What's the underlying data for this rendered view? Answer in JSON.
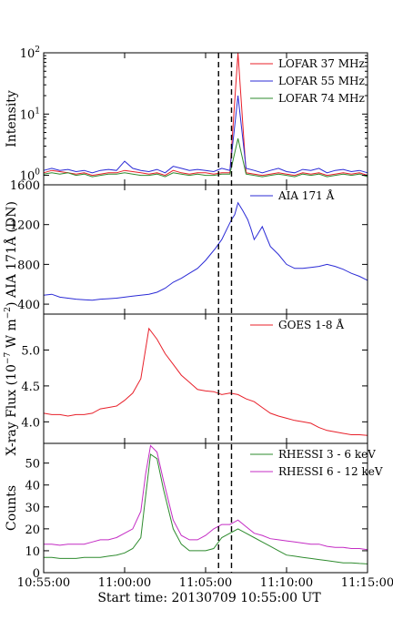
{
  "xaxis": {
    "ticks": [
      "10:55:00",
      "11:00:00",
      "11:05:00",
      "11:10:00",
      "11:15:00"
    ],
    "label": "Start time: 20130709 10:55:00 UT"
  },
  "markers": {
    "times_min": [
      10.8,
      11.6
    ],
    "style": "dashed",
    "color": "#000000"
  },
  "chart_data": [
    {
      "type": "line",
      "id": "lofar",
      "ylabel": "Intensity",
      "yscale": "log",
      "ylim": [
        0.7,
        100
      ],
      "ytick_base": "10",
      "ytick_exps": [
        "0",
        "1",
        "2"
      ],
      "legend_position": "top-right",
      "series": [
        {
          "name": "LOFAR 37 MHz",
          "color": "#e8202a",
          "x": [
            0,
            0.5,
            1,
            1.5,
            2,
            2.5,
            3,
            3.5,
            4,
            4.5,
            5,
            5.5,
            6,
            6.5,
            7,
            7.5,
            8,
            8.5,
            9,
            9.5,
            10,
            10.5,
            11,
            11.5,
            12,
            12.5,
            13,
            13.5,
            14,
            14.5,
            15,
            15.5,
            16,
            16.5,
            17,
            17.5,
            18,
            18.5,
            19,
            19.5,
            20
          ],
          "y": [
            1.1,
            1.2,
            1.15,
            1.1,
            1.05,
            1.1,
            1.0,
            1.05,
            1.1,
            1.1,
            1.2,
            1.15,
            1.1,
            1.05,
            1.1,
            1.0,
            1.2,
            1.1,
            1.05,
            1.1,
            1.1,
            1.05,
            1.1,
            1.1,
            100,
            1.1,
            1.05,
            1.0,
            1.05,
            1.1,
            1.05,
            1.0,
            1.1,
            1.05,
            1.1,
            1.0,
            1.05,
            1.1,
            1.05,
            1.1,
            1.0
          ]
        },
        {
          "name": "LOFAR 55 MHz",
          "color": "#2b2bd6",
          "x": [
            0,
            0.5,
            1,
            1.5,
            2,
            2.5,
            3,
            3.5,
            4,
            4.5,
            5,
            5.5,
            6,
            6.5,
            7,
            7.5,
            8,
            8.5,
            9,
            9.5,
            10,
            10.5,
            11,
            11.5,
            12,
            12.5,
            13,
            13.5,
            14,
            14.5,
            15,
            15.5,
            16,
            16.5,
            17,
            17.5,
            18,
            18.5,
            19,
            19.5,
            20
          ],
          "y": [
            1.2,
            1.3,
            1.2,
            1.25,
            1.15,
            1.2,
            1.1,
            1.2,
            1.25,
            1.2,
            1.7,
            1.3,
            1.2,
            1.15,
            1.25,
            1.1,
            1.4,
            1.3,
            1.2,
            1.25,
            1.2,
            1.15,
            1.3,
            1.2,
            20,
            1.3,
            1.2,
            1.1,
            1.2,
            1.3,
            1.15,
            1.1,
            1.25,
            1.2,
            1.3,
            1.1,
            1.2,
            1.25,
            1.15,
            1.2,
            1.1
          ]
        },
        {
          "name": "LOFAR 74 MHz",
          "color": "#2e8b2e",
          "x": [
            0,
            0.5,
            1,
            1.5,
            2,
            2.5,
            3,
            3.5,
            4,
            4.5,
            5,
            5.5,
            6,
            6.5,
            7,
            7.5,
            8,
            8.5,
            9,
            9.5,
            10,
            10.5,
            11,
            11.5,
            12,
            12.5,
            13,
            13.5,
            14,
            14.5,
            15,
            15.5,
            16,
            16.5,
            17,
            17.5,
            18,
            18.5,
            19,
            19.5,
            20
          ],
          "y": [
            1.05,
            1.1,
            1.05,
            1.1,
            1.0,
            1.05,
            0.95,
            1.0,
            1.05,
            1.05,
            1.1,
            1.05,
            1.0,
            1.0,
            1.05,
            0.95,
            1.1,
            1.05,
            1.0,
            1.05,
            1.0,
            1.0,
            1.05,
            1.05,
            4.0,
            1.05,
            1.0,
            0.95,
            1.0,
            1.05,
            1.0,
            0.95,
            1.05,
            1.0,
            1.05,
            0.95,
            1.0,
            1.05,
            1.0,
            1.05,
            0.95
          ]
        }
      ]
    },
    {
      "type": "line",
      "id": "aia",
      "ylabel": "AIA 171Å (DN)",
      "ylim": [
        300,
        1600
      ],
      "yticks": [
        400,
        800,
        1200,
        1600
      ],
      "legend_position": "top-right",
      "series": [
        {
          "name": "AIA 171 Å",
          "color": "#2b2bd6",
          "x": [
            0,
            0.5,
            1,
            1.5,
            2,
            2.5,
            3,
            3.5,
            4,
            4.5,
            5,
            5.5,
            6,
            6.5,
            7,
            7.5,
            8,
            8.5,
            9,
            9.5,
            10,
            10.3,
            10.6,
            11,
            11.3,
            11.6,
            11.8,
            12,
            12.3,
            12.6,
            12.8,
            13,
            13.2,
            13.5,
            13.8,
            14,
            14.5,
            15,
            15.5,
            16,
            16.5,
            17,
            17.5,
            18,
            18.5,
            19,
            19.5,
            20
          ],
          "y": [
            490,
            500,
            470,
            460,
            450,
            445,
            440,
            450,
            455,
            460,
            470,
            480,
            490,
            500,
            520,
            560,
            620,
            660,
            710,
            760,
            840,
            900,
            960,
            1050,
            1150,
            1250,
            1300,
            1420,
            1340,
            1250,
            1160,
            1050,
            1100,
            1180,
            1060,
            980,
            900,
            800,
            760,
            760,
            770,
            780,
            800,
            780,
            750,
            710,
            680,
            640
          ]
        }
      ]
    },
    {
      "type": "line",
      "id": "goes",
      "ylabel": "X-ray Flux (10",
      "ylabel_exp": "−7",
      "ylabel_unit": " W m",
      "ylabel_unit_exp": "−2",
      "ylabel_close": ")",
      "ylim": [
        3.7,
        5.5
      ],
      "yticks": [
        "4.0",
        "4.5",
        "5.0"
      ],
      "legend_position": "top-right",
      "series": [
        {
          "name": "GOES 1-8 Å",
          "color": "#e8202a",
          "x": [
            0,
            0.5,
            1,
            1.5,
            2,
            2.5,
            3,
            3.5,
            4,
            4.5,
            5,
            5.5,
            6,
            6.5,
            7,
            7.5,
            8,
            8.5,
            9,
            9.5,
            10,
            10.5,
            11,
            11.5,
            12,
            12.5,
            13,
            13.5,
            14,
            14.5,
            15,
            15.5,
            16,
            16.5,
            17,
            17.5,
            18,
            18.5,
            19,
            19.5,
            20
          ],
          "y": [
            4.12,
            4.1,
            4.1,
            4.08,
            4.1,
            4.1,
            4.12,
            4.18,
            4.2,
            4.22,
            4.3,
            4.4,
            4.6,
            5.3,
            5.15,
            4.95,
            4.8,
            4.65,
            4.55,
            4.45,
            4.43,
            4.42,
            4.38,
            4.4,
            4.38,
            4.32,
            4.28,
            4.2,
            4.12,
            4.08,
            4.05,
            4.02,
            4.0,
            3.98,
            3.92,
            3.88,
            3.86,
            3.84,
            3.82,
            3.82,
            3.81
          ]
        }
      ]
    },
    {
      "type": "line",
      "id": "rhessi",
      "ylabel": "Counts",
      "ylim": [
        0,
        59
      ],
      "yticks": [
        "0",
        "10",
        "20",
        "30",
        "40",
        "50"
      ],
      "legend_position": "top-right",
      "series": [
        {
          "name": "RHESSI 3 - 6 keV",
          "color": "#2e8b2e",
          "x": [
            0,
            0.5,
            1,
            1.5,
            2,
            2.5,
            3,
            3.5,
            4,
            4.5,
            5,
            5.5,
            6,
            6.3,
            6.6,
            7,
            7.4,
            8,
            8.5,
            9,
            9.5,
            10,
            10.5,
            11,
            11.5,
            12,
            12.5,
            13,
            13.5,
            14,
            14.5,
            15,
            15.5,
            16,
            16.5,
            17,
            17.5,
            18,
            18.5,
            19,
            19.5,
            20
          ],
          "y": [
            7,
            7,
            6.5,
            6.5,
            6.5,
            7,
            7,
            7,
            7.5,
            8,
            9,
            11,
            16,
            35,
            54,
            52,
            38,
            20,
            13,
            10,
            10,
            10,
            11,
            16,
            18,
            20,
            18,
            16,
            14,
            12,
            10,
            8,
            7.5,
            7,
            6.5,
            6,
            5.5,
            5,
            4.5,
            4.5,
            4.2,
            4
          ]
        },
        {
          "name": "RHESSI 6 - 12 keV",
          "color": "#c42cc4",
          "x": [
            0,
            0.5,
            1,
            1.5,
            2,
            2.5,
            3,
            3.5,
            4,
            4.5,
            5,
            5.5,
            6,
            6.3,
            6.6,
            7,
            7.4,
            8,
            8.5,
            9,
            9.5,
            10,
            10.5,
            11,
            11.5,
            12,
            12.5,
            13,
            13.5,
            14,
            14.5,
            15,
            15.5,
            16,
            16.5,
            17,
            17.5,
            18,
            18.5,
            19,
            19.5,
            20
          ],
          "y": [
            13,
            13,
            12.5,
            13,
            13,
            13,
            14,
            15,
            15,
            16,
            18,
            20,
            28,
            45,
            58,
            55,
            42,
            24,
            17,
            15,
            15,
            17,
            20,
            22,
            22,
            24,
            21,
            18,
            17,
            15.5,
            15,
            14.5,
            14,
            13.5,
            13,
            13,
            12,
            11.5,
            11.5,
            11,
            11,
            10.5
          ]
        }
      ]
    }
  ]
}
